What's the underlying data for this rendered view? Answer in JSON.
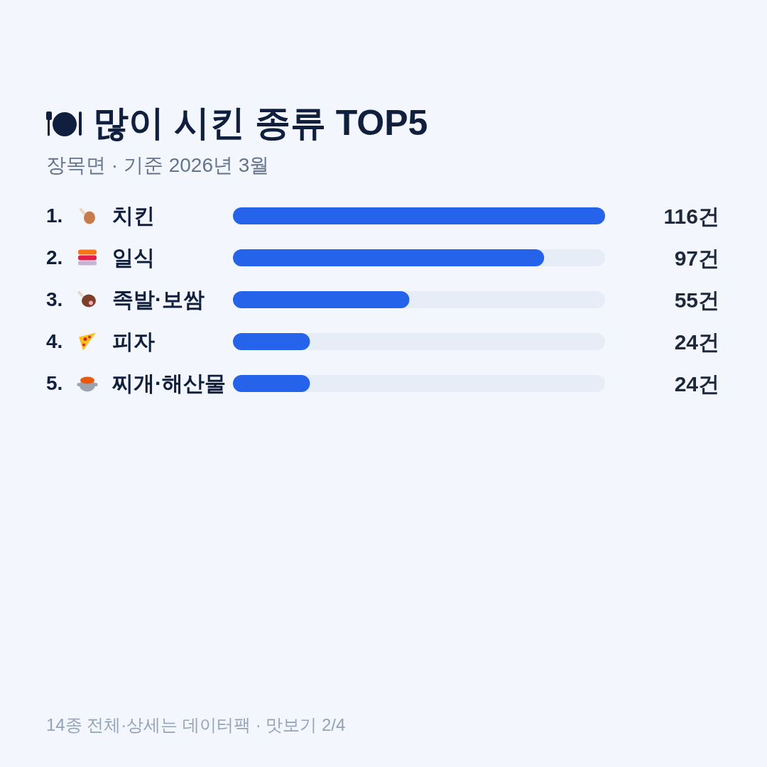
{
  "chart_data": {
    "type": "bar",
    "orientation": "horizontal",
    "title": "많이 시킨 종류 TOP5",
    "subtitle": "장목면 · 기준 2026년 3월",
    "categories": [
      "1. 치킨",
      "2. 일식",
      "3. 족발·보쌈",
      "4. 피자",
      "5. 찌개·해산물"
    ],
    "values": [
      116,
      97,
      55,
      24,
      24
    ],
    "value_labels": [
      "116건",
      "97건",
      "55건",
      "24건",
      "24건"
    ],
    "color": "#2563eb",
    "annotations": [
      "14종 전체·상세는 데이터팩 · 맛보기 2/4"
    ]
  }
}
